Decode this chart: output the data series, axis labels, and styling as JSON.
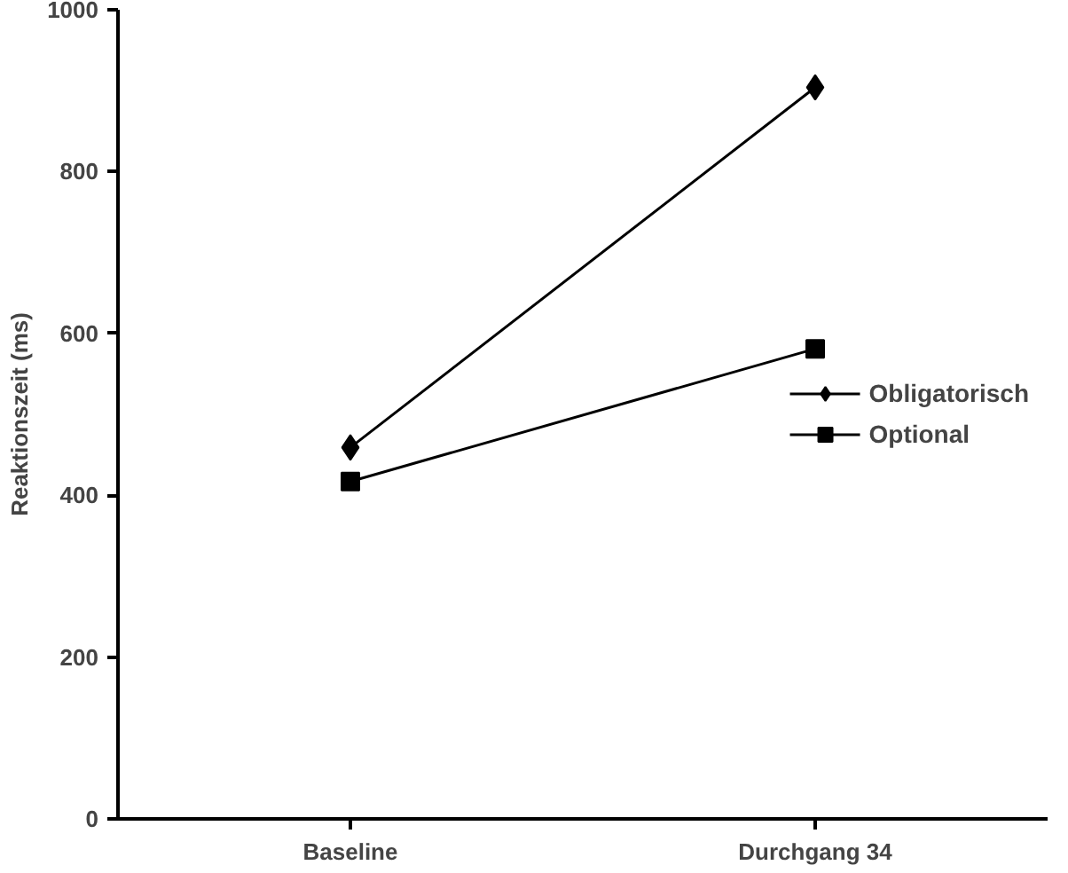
{
  "chart_data": {
    "type": "line",
    "ylabel": "Reaktionszeit (ms)",
    "categories": [
      "Baseline",
      "Durchgang 34"
    ],
    "ylim": [
      0,
      1000
    ],
    "yticks": [
      0,
      200,
      400,
      600,
      800,
      1000
    ],
    "grid": false,
    "legend": "right",
    "series": [
      {
        "name": "Obligatorisch",
        "color": "#000000",
        "marker": "diamond",
        "values": [
          459,
          904
        ]
      },
      {
        "name": "Optional",
        "color": "#000000",
        "marker": "square",
        "values": [
          417,
          581
        ]
      }
    ]
  }
}
